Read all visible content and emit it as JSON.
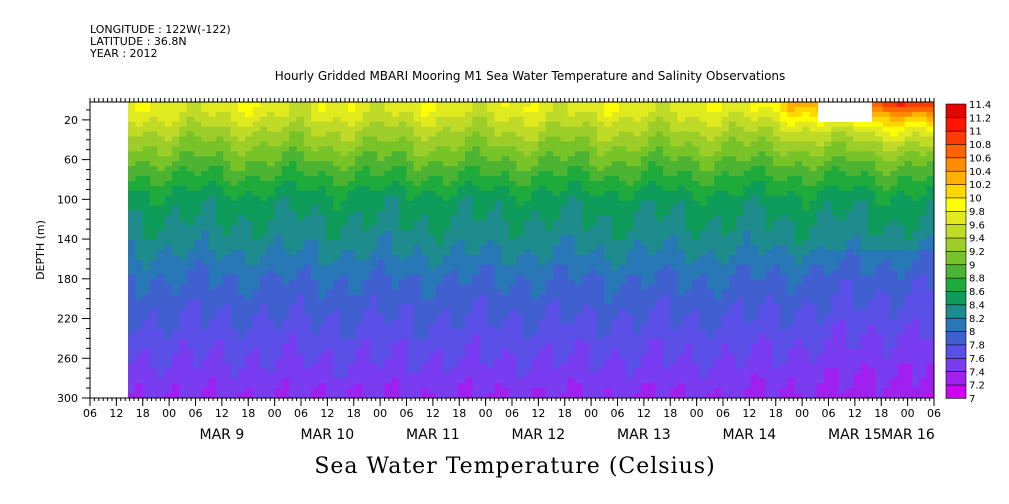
{
  "meta": {
    "longitude": "LONGITUDE : 122W(-122)",
    "latitude": "LATITUDE : 36.8N",
    "year": "YEAR : 2012"
  },
  "chart_data": {
    "type": "heatmap",
    "title": "Hourly Gridded MBARI Mooring M1 Sea Water Temperature and Salinity Observations",
    "colorbar_title": "Sea Water Temperature (Celsius)",
    "ylabel": "DEPTH (m)",
    "ylim": [
      300,
      2
    ],
    "y_ticks": [
      20,
      60,
      100,
      140,
      180,
      220,
      260,
      300
    ],
    "x_hour_ticks": [
      "06",
      "12",
      "18",
      "00",
      "06",
      "12",
      "18",
      "00",
      "06",
      "12",
      "18",
      "00",
      "06",
      "12",
      "18",
      "00",
      "06",
      "12",
      "18",
      "00",
      "06",
      "12",
      "18",
      "00",
      "06",
      "12",
      "18",
      "00",
      "06",
      "12",
      "18",
      "00",
      "06"
    ],
    "x_day_labels": [
      "MAR 9",
      "MAR 10",
      "MAR 11",
      "MAR 12",
      "MAR 13",
      "MAR 14",
      "MAR 15",
      "MAR 16"
    ],
    "data_start": "MAR 8 13:00",
    "levels": [
      7,
      7.2,
      7.4,
      7.6,
      7.8,
      8,
      8.2,
      8.4,
      8.6,
      8.8,
      9,
      9.2,
      9.4,
      9.6,
      9.8,
      10,
      10.2,
      10.4,
      10.6,
      10.8,
      11,
      11.2,
      11.4
    ],
    "level_labels": [
      "11.4",
      "11.2",
      "11",
      "10.8",
      "10.6",
      "10.4",
      "10.2",
      "10",
      "9.8",
      "9.6",
      "9.4",
      "9.2",
      "9",
      "8.8",
      "8.6",
      "8.4",
      "8.2",
      "8",
      "7.8",
      "7.6",
      "7.4",
      "7.2",
      "7"
    ],
    "colors": [
      "#d000f0",
      "#a020f0",
      "#7a3cf0",
      "#5a50e8",
      "#4060d0",
      "#2878b8",
      "#1e8c8c",
      "#0f9c5a",
      "#1eab3c",
      "#4cb432",
      "#78c328",
      "#9ccd28",
      "#c0da28",
      "#e0ea1e",
      "#ffff00",
      "#ffd700",
      "#ffb000",
      "#ff8c00",
      "#ff6400",
      "#ff3c00",
      "#ff1400",
      "#e60000",
      "#b40000"
    ],
    "depth_profile": [
      {
        "depth": 10,
        "temp": 9.7
      },
      {
        "depth": 30,
        "temp": 9.4
      },
      {
        "depth": 60,
        "temp": 9.0
      },
      {
        "depth": 100,
        "temp": 8.5
      },
      {
        "depth": 140,
        "temp": 8.3
      },
      {
        "depth": 180,
        "temp": 8.0
      },
      {
        "depth": 220,
        "temp": 7.8
      },
      {
        "depth": 260,
        "temp": 7.6
      },
      {
        "depth": 300,
        "temp": 7.4
      }
    ]
  }
}
